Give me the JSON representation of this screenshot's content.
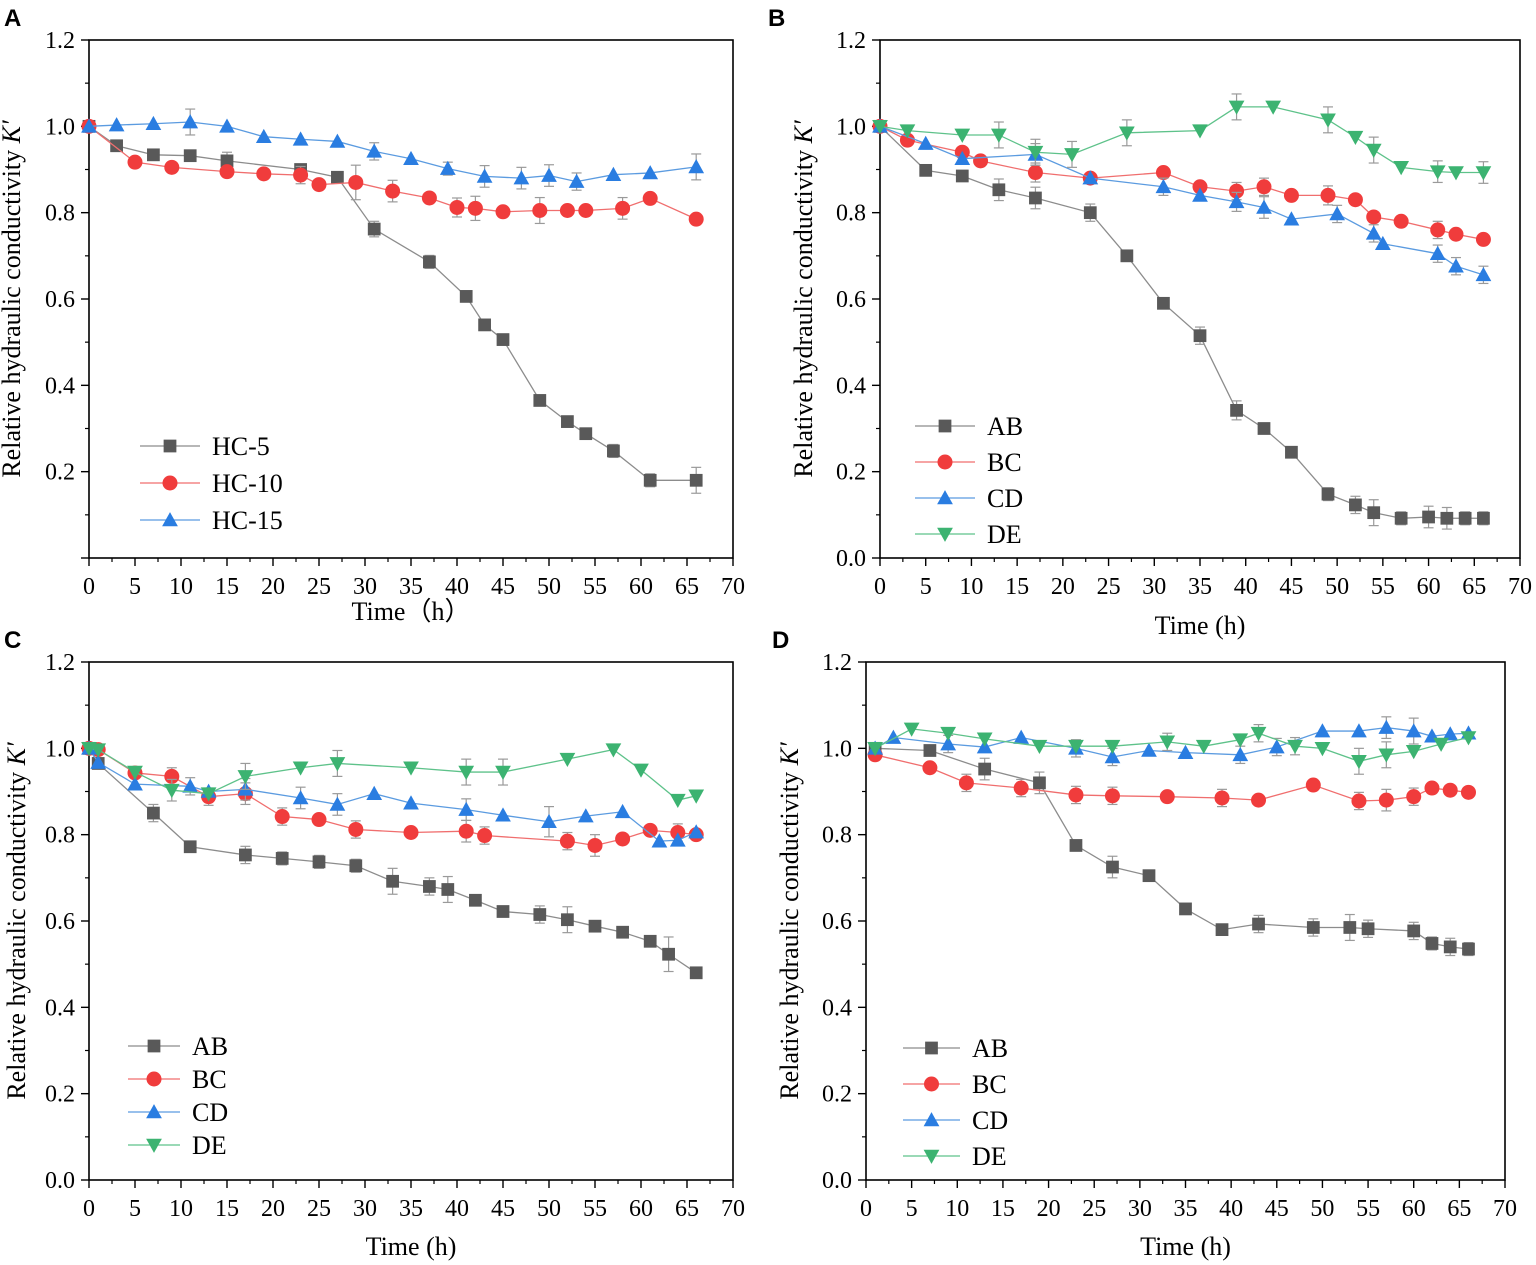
{
  "colors": {
    "AB": "#595959",
    "BC": "#f03c3c",
    "CD": "#2a7de1",
    "DE": "#3cb371",
    "line_AB": "#8c8c8c",
    "line_BC": "#f06e6e",
    "line_CD": "#5b9be0",
    "line_DE": "#5ec28a",
    "errorbar": "#9a9a9a"
  },
  "chart_data": [
    {
      "panel": "A",
      "type": "line",
      "title": "",
      "xlabel": "Time（h）",
      "ylabel": "Relative hydraulic conductivity K′",
      "ylabel_main": "Relative hydraulic conductivity ",
      "ylabel_italic": "K′",
      "xlim": [
        0,
        70
      ],
      "ylim": [
        0,
        1.2
      ],
      "xticks": [
        0,
        5,
        10,
        15,
        20,
        25,
        30,
        35,
        40,
        45,
        50,
        55,
        60,
        65,
        70
      ],
      "yticks": [
        0.2,
        0.4,
        0.6,
        0.8,
        1.0,
        1.2
      ],
      "legend_position": "bottom-left",
      "series": [
        {
          "name": "HC-5",
          "key": "AB",
          "marker": "square",
          "x": [
            0,
            3,
            7,
            11,
            15,
            23,
            27,
            31,
            37,
            41,
            43,
            45,
            49,
            52,
            54,
            57,
            61,
            66
          ],
          "y": [
            1.0,
            0.955,
            0.934,
            0.932,
            0.92,
            0.9,
            0.882,
            0.762,
            0.686,
            0.606,
            0.54,
            0.506,
            0.365,
            0.316,
            0.288,
            0.248,
            0.18,
            0.18
          ],
          "err": [
            0,
            0,
            0,
            0,
            0.02,
            0.01,
            0,
            0.018,
            0.015,
            0.012,
            0.01,
            0.01,
            0,
            0.008,
            0,
            0.015,
            0.015,
            0.03
          ]
        },
        {
          "name": "HC-10",
          "key": "BC",
          "marker": "circle",
          "x": [
            0,
            5,
            9,
            15,
            19,
            23,
            25,
            29,
            33,
            37,
            40,
            42,
            45,
            49,
            52,
            54,
            58,
            61,
            66
          ],
          "y": [
            1.0,
            0.917,
            0.905,
            0.895,
            0.89,
            0.887,
            0.865,
            0.87,
            0.85,
            0.834,
            0.812,
            0.81,
            0.802,
            0.805,
            0.805,
            0.805,
            0.81,
            0.833,
            0.785
          ],
          "err": [
            0,
            0,
            0,
            0,
            0,
            0.02,
            0,
            0.04,
            0.025,
            0,
            0.022,
            0.028,
            0,
            0.03,
            0,
            0,
            0.025,
            0,
            0
          ]
        },
        {
          "name": "HC-15",
          "key": "CD",
          "marker": "triangle-up",
          "x": [
            0,
            3,
            7,
            11,
            15,
            19,
            23,
            27,
            31,
            35,
            39,
            43,
            47,
            50,
            53,
            57,
            61,
            66
          ],
          "y": [
            1.0,
            1.003,
            1.006,
            1.01,
            1.0,
            0.976,
            0.97,
            0.965,
            0.942,
            0.925,
            0.902,
            0.884,
            0.88,
            0.886,
            0.872,
            0.888,
            0.892,
            0.906
          ],
          "err": [
            0,
            0,
            0,
            0.03,
            0,
            0,
            0,
            0,
            0.02,
            0,
            0.015,
            0.025,
            0.025,
            0.025,
            0.02,
            0,
            0,
            0.03
          ]
        }
      ]
    },
    {
      "panel": "B",
      "type": "line",
      "title": "",
      "xlabel": "Time (h)",
      "ylabel": "Relative hydraulic conductivity K′",
      "ylabel_main": "Relative hydraulic conductivity ",
      "ylabel_italic": "K′",
      "xlim": [
        0,
        70
      ],
      "ylim": [
        0,
        1.2
      ],
      "xticks": [
        0,
        5,
        10,
        15,
        20,
        25,
        30,
        35,
        40,
        45,
        50,
        55,
        60,
        65,
        70
      ],
      "yticks": [
        0.0,
        0.2,
        0.4,
        0.6,
        0.8,
        1.0,
        1.2
      ],
      "legend_position": "bottom-left",
      "series": [
        {
          "name": "AB",
          "key": "AB",
          "marker": "square",
          "x": [
            0,
            5,
            9,
            13,
            17,
            23,
            27,
            31,
            35,
            39,
            42,
            45,
            49,
            52,
            54,
            57,
            60,
            62,
            64,
            66
          ],
          "y": [
            1.0,
            0.898,
            0.885,
            0.853,
            0.834,
            0.8,
            0.7,
            0.59,
            0.515,
            0.342,
            0.3,
            0.245,
            0.148,
            0.123,
            0.105,
            0.092,
            0.095,
            0.092,
            0.092,
            0.092
          ],
          "err": [
            0,
            0,
            0,
            0.025,
            0.025,
            0.02,
            0,
            0,
            0.02,
            0.022,
            0,
            0,
            0.015,
            0.02,
            0.03,
            0.015,
            0.025,
            0.025,
            0.015,
            0.015
          ]
        },
        {
          "name": "BC",
          "key": "BC",
          "marker": "circle",
          "x": [
            0,
            3,
            9,
            11,
            17,
            23,
            31,
            35,
            39,
            42,
            45,
            49,
            52,
            54,
            57,
            61,
            63,
            66
          ],
          "y": [
            1.0,
            0.968,
            0.94,
            0.92,
            0.893,
            0.88,
            0.893,
            0.86,
            0.85,
            0.86,
            0.84,
            0.84,
            0.83,
            0.79,
            0.78,
            0.76,
            0.75,
            0.738
          ],
          "err": [
            0,
            0,
            0,
            0,
            0.022,
            0,
            0,
            0,
            0.02,
            0.02,
            0,
            0.022,
            0,
            0,
            0,
            0.02,
            0,
            0
          ]
        },
        {
          "name": "CD",
          "key": "CD",
          "marker": "triangle-up",
          "x": [
            0,
            5,
            9,
            17,
            23,
            31,
            35,
            39,
            42,
            45,
            50,
            54,
            55,
            61,
            63,
            66
          ],
          "y": [
            1.0,
            0.96,
            0.925,
            0.935,
            0.88,
            0.86,
            0.84,
            0.825,
            0.812,
            0.785,
            0.797,
            0.752,
            0.728,
            0.705,
            0.676,
            0.656
          ],
          "err": [
            0,
            0,
            0,
            0.025,
            0,
            0.02,
            0,
            0.022,
            0.025,
            0,
            0.02,
            0.02,
            0,
            0.02,
            0.02,
            0.02
          ]
        },
        {
          "name": "DE",
          "key": "DE",
          "marker": "triangle-down",
          "x": [
            0,
            3,
            9,
            13,
            17,
            21,
            27,
            35,
            39,
            43,
            49,
            52,
            54,
            57,
            61,
            63,
            66
          ],
          "y": [
            1.0,
            0.99,
            0.98,
            0.98,
            0.94,
            0.935,
            0.985,
            0.99,
            1.045,
            1.045,
            1.015,
            0.975,
            0.945,
            0.905,
            0.895,
            0.893,
            0.893
          ],
          "err": [
            0,
            0,
            0,
            0.03,
            0.03,
            0.03,
            0.03,
            0,
            0.03,
            0,
            0.03,
            0,
            0.03,
            0,
            0.025,
            0,
            0.025
          ]
        }
      ]
    },
    {
      "panel": "C",
      "type": "line",
      "title": "",
      "xlabel": "Time (h)",
      "ylabel": "Relative hydraulic conductivity K′",
      "ylabel_main": "Relative hydraulic conductivity ",
      "ylabel_italic": "K′",
      "xlim": [
        0,
        70
      ],
      "ylim": [
        0,
        1.2
      ],
      "xticks": [
        0,
        5,
        10,
        15,
        20,
        25,
        30,
        35,
        40,
        45,
        50,
        55,
        60,
        65,
        70
      ],
      "yticks": [
        0.0,
        0.2,
        0.4,
        0.6,
        0.8,
        1.0,
        1.2
      ],
      "legend_position": "bottom-left",
      "series": [
        {
          "name": "AB",
          "key": "AB",
          "marker": "square",
          "x": [
            0,
            1,
            7,
            11,
            17,
            21,
            25,
            29,
            33,
            37,
            39,
            42,
            45,
            49,
            52,
            55,
            58,
            61,
            63,
            66
          ],
          "y": [
            1.0,
            0.965,
            0.85,
            0.772,
            0.753,
            0.745,
            0.737,
            0.728,
            0.692,
            0.68,
            0.673,
            0.648,
            0.622,
            0.615,
            0.603,
            0.588,
            0.574,
            0.553,
            0.523,
            0.48
          ],
          "err": [
            0,
            0,
            0.02,
            0,
            0.02,
            0.015,
            0.015,
            0.015,
            0.03,
            0.02,
            0.03,
            0,
            0,
            0.02,
            0.03,
            0,
            0,
            0,
            0.04,
            0
          ]
        },
        {
          "name": "BC",
          "key": "BC",
          "marker": "circle",
          "x": [
            0,
            1,
            5,
            9,
            13,
            17,
            21,
            25,
            29,
            35,
            41,
            43,
            52,
            55,
            58,
            61,
            64,
            66
          ],
          "y": [
            1.0,
            0.997,
            0.943,
            0.935,
            0.888,
            0.895,
            0.842,
            0.835,
            0.812,
            0.805,
            0.808,
            0.798,
            0.785,
            0.775,
            0.79,
            0.81,
            0.805,
            0.8
          ],
          "err": [
            0,
            0,
            0,
            0.02,
            0.02,
            0.025,
            0.02,
            0,
            0.02,
            0,
            0.025,
            0.02,
            0.02,
            0.025,
            0,
            0,
            0.02,
            0
          ]
        },
        {
          "name": "CD",
          "key": "CD",
          "marker": "triangle-up",
          "x": [
            0,
            1,
            5,
            11,
            13,
            17,
            23,
            27,
            31,
            35,
            41,
            45,
            50,
            54,
            58,
            62,
            64,
            66
          ],
          "y": [
            1.0,
            0.967,
            0.917,
            0.912,
            0.9,
            0.905,
            0.885,
            0.87,
            0.895,
            0.873,
            0.858,
            0.845,
            0.83,
            0.843,
            0.853,
            0.785,
            0.787,
            0.806
          ],
          "err": [
            0,
            0,
            0,
            0.02,
            0,
            0.025,
            0.025,
            0.025,
            0,
            0,
            0.025,
            0,
            0.035,
            0,
            0,
            0,
            0,
            0
          ]
        },
        {
          "name": "DE",
          "key": "DE",
          "marker": "triangle-down",
          "x": [
            0,
            1,
            5,
            9,
            13,
            17,
            23,
            27,
            35,
            41,
            45,
            52,
            57,
            60,
            64,
            66
          ],
          "y": [
            1.0,
            0.997,
            0.945,
            0.903,
            0.895,
            0.935,
            0.955,
            0.965,
            0.955,
            0.945,
            0.945,
            0.975,
            0.997,
            0.95,
            0.88,
            0.89
          ],
          "err": [
            0,
            0,
            0,
            0.025,
            0,
            0.03,
            0,
            0.03,
            0,
            0.03,
            0.03,
            0,
            0,
            0,
            0,
            0
          ]
        }
      ]
    },
    {
      "panel": "D",
      "type": "line",
      "title": "",
      "xlabel": "Time (h)",
      "ylabel": "Relative hydraulic conductivity K′",
      "ylabel_main": "Relative hydraulic conductivity ",
      "ylabel_italic": "K′",
      "xlim": [
        0,
        70
      ],
      "ylim": [
        0,
        1.2
      ],
      "xticks": [
        0,
        5,
        10,
        15,
        20,
        25,
        30,
        35,
        40,
        45,
        50,
        55,
        60,
        65,
        70
      ],
      "yticks": [
        0.0,
        0.2,
        0.4,
        0.6,
        0.8,
        1.0,
        1.2
      ],
      "legend_position": "bottom-left",
      "series": [
        {
          "name": "AB",
          "key": "AB",
          "marker": "square",
          "x": [
            1,
            7,
            13,
            19,
            23,
            27,
            31,
            35,
            39,
            43,
            49,
            53,
            55,
            60,
            62,
            64,
            66
          ],
          "y": [
            1.0,
            0.995,
            0.952,
            0.92,
            0.775,
            0.725,
            0.705,
            0.628,
            0.58,
            0.593,
            0.585,
            0.585,
            0.582,
            0.577,
            0.548,
            0.54,
            0.535
          ],
          "err": [
            0,
            0,
            0.025,
            0.025,
            0,
            0.025,
            0,
            0,
            0,
            0.02,
            0.02,
            0.03,
            0.02,
            0.02,
            0.015,
            0.02,
            0.015
          ]
        },
        {
          "name": "BC",
          "key": "BC",
          "marker": "circle",
          "x": [
            1,
            7,
            11,
            17,
            23,
            27,
            33,
            39,
            43,
            49,
            54,
            57,
            60,
            62,
            64,
            66
          ],
          "y": [
            0.985,
            0.955,
            0.92,
            0.908,
            0.892,
            0.89,
            0.888,
            0.885,
            0.88,
            0.915,
            0.878,
            0.88,
            0.888,
            0.908,
            0.903,
            0.898
          ],
          "err": [
            0,
            0,
            0.02,
            0.02,
            0.02,
            0.02,
            0,
            0.02,
            0,
            0,
            0.02,
            0.025,
            0.02,
            0,
            0,
            0
          ]
        },
        {
          "name": "CD",
          "key": "CD",
          "marker": "triangle-up",
          "x": [
            1,
            3,
            9,
            13,
            17,
            23,
            27,
            31,
            35,
            41,
            45,
            50,
            54,
            57,
            60,
            62,
            64,
            66
          ],
          "y": [
            1.0,
            1.025,
            1.01,
            1.003,
            1.025,
            1.0,
            0.98,
            0.995,
            0.99,
            0.985,
            1.003,
            1.04,
            1.04,
            1.048,
            1.04,
            1.028,
            1.033,
            1.035
          ],
          "err": [
            0,
            0,
            0.02,
            0,
            0,
            0.02,
            0.02,
            0,
            0,
            0.02,
            0.02,
            0,
            0,
            0.025,
            0.03,
            0,
            0,
            0
          ]
        },
        {
          "name": "DE",
          "key": "DE",
          "marker": "triangle-down",
          "x": [
            1,
            5,
            9,
            13,
            19,
            23,
            27,
            33,
            37,
            41,
            43,
            47,
            50,
            54,
            57,
            60,
            63,
            66
          ],
          "y": [
            1.0,
            1.045,
            1.035,
            1.022,
            1.005,
            1.005,
            1.005,
            1.015,
            1.005,
            1.02,
            1.035,
            1.005,
            1.0,
            0.97,
            0.985,
            0.993,
            1.01,
            1.025
          ],
          "err": [
            0,
            0,
            0,
            0,
            0,
            0,
            0,
            0.02,
            0,
            0,
            0.02,
            0.02,
            0,
            0.03,
            0.03,
            0,
            0,
            0
          ]
        }
      ]
    }
  ]
}
